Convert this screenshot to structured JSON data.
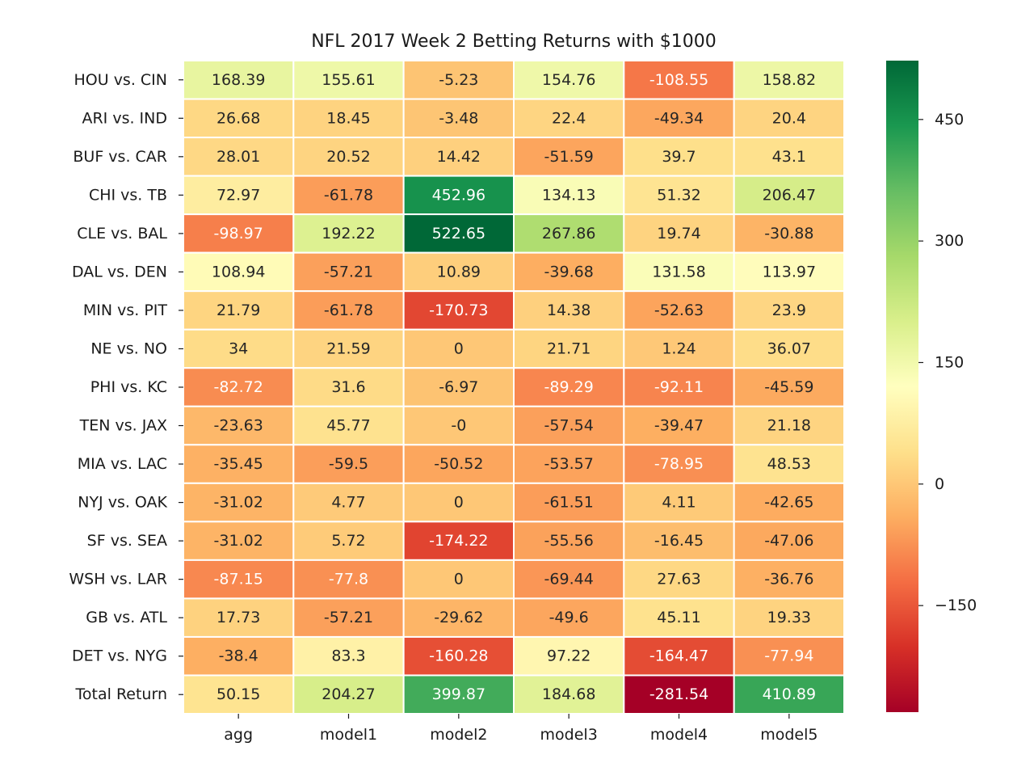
{
  "chart_data": {
    "type": "heatmap",
    "title": "NFL 2017 Week 2 Betting Returns with $1000",
    "xlabel": "",
    "ylabel": "",
    "columns": [
      "agg",
      "model1",
      "model2",
      "model3",
      "model4",
      "model5"
    ],
    "rows": [
      "HOU vs. CIN",
      "ARI vs. IND",
      "BUF vs. CAR",
      "CHI vs. TB",
      "CLE vs. BAL",
      "DAL vs. DEN",
      "MIN vs. PIT",
      "NE vs. NO",
      "PHI vs. KC",
      "TEN vs. JAX",
      "MIA vs. LAC",
      "NYJ vs. OAK",
      "SF vs. SEA",
      "WSH vs. LAR",
      "GB vs. ATL",
      "DET vs. NYG",
      "Total Return"
    ],
    "values": [
      [
        "168.39",
        "155.61",
        "-5.23",
        "154.76",
        "-108.55",
        "158.82"
      ],
      [
        "26.68",
        "18.45",
        "-3.48",
        "22.4",
        "-49.34",
        "20.4"
      ],
      [
        "28.01",
        "20.52",
        "14.42",
        "-51.59",
        "39.7",
        "43.1"
      ],
      [
        "72.97",
        "-61.78",
        "452.96",
        "134.13",
        "51.32",
        "206.47"
      ],
      [
        "-98.97",
        "192.22",
        "522.65",
        "267.86",
        "19.74",
        "-30.88"
      ],
      [
        "108.94",
        "-57.21",
        "10.89",
        "-39.68",
        "131.58",
        "113.97"
      ],
      [
        "21.79",
        "-61.78",
        "-170.73",
        "14.38",
        "-52.63",
        "23.9"
      ],
      [
        "34",
        "21.59",
        "0",
        "21.71",
        "1.24",
        "36.07"
      ],
      [
        "-82.72",
        "31.6",
        "-6.97",
        "-89.29",
        "-92.11",
        "-45.59"
      ],
      [
        "-23.63",
        "45.77",
        "-0",
        "-57.54",
        "-39.47",
        "21.18"
      ],
      [
        "-35.45",
        "-59.5",
        "-50.52",
        "-53.57",
        "-78.95",
        "48.53"
      ],
      [
        "-31.02",
        "4.77",
        "0",
        "-61.51",
        "4.11",
        "-42.65"
      ],
      [
        "-31.02",
        "5.72",
        "-174.22",
        "-55.56",
        "-16.45",
        "-47.06"
      ],
      [
        "-87.15",
        "-77.8",
        "0",
        "-69.44",
        "27.63",
        "-36.76"
      ],
      [
        "17.73",
        "-57.21",
        "-29.62",
        "-49.6",
        "45.11",
        "19.33"
      ],
      [
        "-38.4",
        "83.3",
        "-160.28",
        "97.22",
        "-164.47",
        "-77.94"
      ],
      [
        "50.15",
        "204.27",
        "399.87",
        "184.68",
        "-281.54",
        "410.89"
      ]
    ],
    "colorbar": {
      "colormap": "RdYlGn",
      "vmin": -281.54,
      "vmax": 522.65,
      "ticks": [
        "450",
        "300",
        "150",
        "0",
        "−150"
      ]
    },
    "grid": false,
    "legend": "colorbar-right"
  }
}
